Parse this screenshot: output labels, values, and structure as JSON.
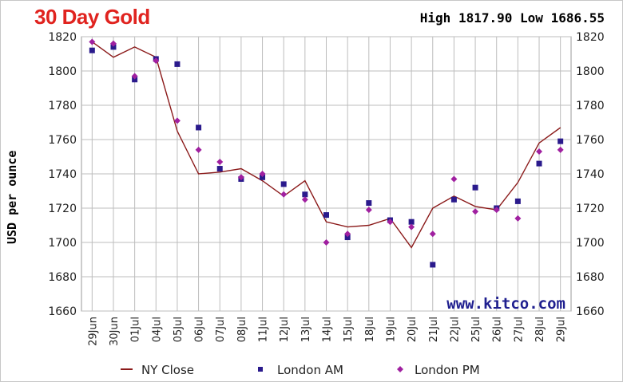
{
  "header": {
    "title": "30 Day Gold",
    "high_label": "High",
    "high_value": "1817.90",
    "low_label": "Low",
    "low_value": "1686.55"
  },
  "watermark": "www.kitco.com",
  "colors": {
    "title": "#e0231f",
    "ny_close": "#8b1a1a",
    "london_am": "#2a1a8c",
    "london_pm": "#a020a0",
    "watermark": "#1f1f8f",
    "grid": "#bdbdbd"
  },
  "chart_data": {
    "type": "line",
    "title": "30 Day Gold",
    "ylabel": "USD per ounce",
    "xlabel": "",
    "ylim": [
      1660,
      1820
    ],
    "yticks": [
      1660,
      1680,
      1700,
      1720,
      1740,
      1760,
      1780,
      1800,
      1820
    ],
    "grid": true,
    "legend_position": "bottom",
    "categories": [
      "29Jun",
      "30Jun",
      "01Jul",
      "04Jul",
      "05Jul",
      "06Jul",
      "07Jul",
      "08Jul",
      "11Jul",
      "12Jul",
      "13Jul",
      "14Jul",
      "15Jul",
      "18Jul",
      "19Jul",
      "20Jul",
      "21Jul",
      "22Jul",
      "25Jul",
      "26Jul",
      "27Jul",
      "28Jul",
      "29Jul"
    ],
    "x": [
      "29Jun",
      "30Jun",
      "01Jul",
      "04Jul",
      "05Jul",
      "06Jul",
      "07Jul",
      "08Jul",
      "11Jul",
      "12Jul",
      "13Jul",
      "14Jul",
      "15Jul",
      "18Jul",
      "19Jul",
      "20Jul",
      "21Jul",
      "22Jul",
      "25Jul",
      "26Jul",
      "27Jul",
      "28Jul",
      "29Jul"
    ],
    "series": [
      {
        "name": "NY Close",
        "style": "line",
        "values": [
          1817,
          1808,
          1814,
          1808,
          1765,
          1740,
          1741,
          1743,
          1736,
          1727,
          1736,
          1712,
          1709,
          1710,
          1714,
          1697,
          1720,
          1727,
          1721,
          1719,
          1735,
          1758,
          1767
        ]
      },
      {
        "name": "London AM",
        "style": "square",
        "values": [
          1812,
          1814,
          1795,
          1807,
          1804,
          1767,
          1743,
          1737,
          1738,
          1734,
          1728,
          1716,
          1703,
          1723,
          1713,
          1712,
          1687,
          1725,
          1732,
          1720,
          1724,
          1746,
          1759
        ]
      },
      {
        "name": "London PM",
        "style": "diamond",
        "values": [
          1817,
          1816,
          1797,
          1806,
          1771,
          1754,
          1747,
          1738,
          1740,
          1728,
          1725,
          1700,
          1705,
          1719,
          1712,
          1709,
          1705,
          1737,
          1718,
          1719,
          1714,
          1753,
          1754
        ]
      }
    ]
  }
}
